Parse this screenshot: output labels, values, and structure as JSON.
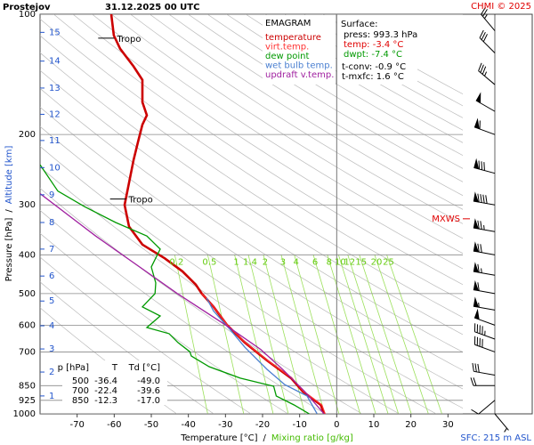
{
  "chart_data": {
    "type": "emagram",
    "station": "Prostejov",
    "title": "31.12.2025 00 UTC",
    "credit": "CHMI © 2025",
    "legend_title": "EMAGRAM",
    "xlabel": "Temperature [°C]",
    "label_separator": "/",
    "x2label": "Mixing ratio [g/kg]",
    "ylabel": "Pressure [hPa]",
    "y2label": "Altitude [km]",
    "xlim": [
      -80,
      34
    ],
    "xticks": [
      -70,
      -60,
      -50,
      -40,
      -30,
      -20,
      -10,
      0,
      10,
      20,
      30
    ],
    "zero_line": true,
    "ylim": [
      1000,
      100
    ],
    "log_y": true,
    "yticks": [
      100,
      200,
      300,
      400,
      500,
      600,
      700,
      850,
      925,
      1000
    ],
    "altitude_ticks": [
      {
        "value": 902,
        "label": "1"
      },
      {
        "value": 786,
        "label": "2"
      },
      {
        "value": 688,
        "label": "3"
      },
      {
        "value": 602,
        "label": "4"
      },
      {
        "value": 522,
        "label": "5"
      },
      {
        "value": 452,
        "label": "6"
      },
      {
        "value": 387,
        "label": "7"
      },
      {
        "value": 332,
        "label": "8"
      },
      {
        "value": 283,
        "label": "9"
      },
      {
        "value": 242,
        "label": "10"
      },
      {
        "value": 207,
        "label": "11"
      },
      {
        "value": 178,
        "label": "12"
      },
      {
        "value": 153,
        "label": "13"
      },
      {
        "value": 131,
        "label": "14"
      },
      {
        "value": 111,
        "label": "15"
      }
    ],
    "mixing_ratio_top": 400,
    "mixing_ratios": [
      0.2,
      0.5,
      1,
      1.4,
      2,
      3,
      4,
      6,
      8,
      10,
      12,
      15,
      20,
      25
    ],
    "series": [
      {
        "name": "temperature",
        "color": "#cc0000",
        "pressure": [
          1000,
          950,
          880,
          814,
          735,
          663,
          599,
          540,
          500,
          475,
          440,
          408,
          377,
          340,
          300,
          264,
          232,
          209,
          189,
          179,
          166,
          146,
          135,
          122,
          113,
          100
        ],
        "values": [
          -3.4,
          -4.3,
          -9.1,
          -12.3,
          -18.8,
          -24.8,
          -29.6,
          -33.2,
          -36.4,
          -38,
          -41.6,
          -46.4,
          -52.4,
          -56,
          -57.2,
          -56,
          -54.8,
          -53.6,
          -52.4,
          -51.2,
          -52.4,
          -52.4,
          -54.8,
          -58.4,
          -60.1,
          -60.8
        ]
      },
      {
        "name": "virt.temp.",
        "color": "#ff3030",
        "pressure": [
          1000,
          950,
          880,
          814,
          735,
          663,
          599,
          540,
          500
        ],
        "values": [
          -3.1,
          -4.0,
          -8.9,
          -12.1,
          -18.7,
          -24.7,
          -29.5,
          -33.2,
          -36.4
        ]
      },
      {
        "name": "dew point",
        "color": "#009900",
        "pressure": [
          1000,
          950,
          902,
          853,
          814,
          762,
          717,
          699,
          663,
          630,
          608,
          569,
          540,
          500,
          470,
          429,
          387,
          359,
          332,
          303,
          277,
          238
        ],
        "values": [
          -7.4,
          -11.5,
          -16.3,
          -17,
          -26,
          -34.4,
          -39.2,
          -39.6,
          -42.8,
          -45.2,
          -51.2,
          -47.6,
          -52.4,
          -49,
          -48.8,
          -50,
          -47.6,
          -51.2,
          -59.6,
          -68,
          -75.2,
          -80
        ]
      },
      {
        "name": "wet bulb temp.",
        "color": "#4a7fd0",
        "pressure": [
          1000,
          902,
          845,
          774,
          681,
          614,
          553,
          513
        ],
        "values": [
          -5.3,
          -8,
          -14,
          -18.8,
          -24.8,
          -28.8,
          -33.2,
          -35.1
        ]
      },
      {
        "name": "updraft v.temp.",
        "color": "#a020a0",
        "pressure": [
          1000,
          880,
          775,
          690,
          599,
          500,
          430,
          359,
          281
        ],
        "values": [
          -3.4,
          -8.6,
          -14.5,
          -20.5,
          -30,
          -43,
          -53,
          -65,
          -80
        ]
      }
    ],
    "tropopause": [
      {
        "label": "Tropo",
        "pressure": 114.8,
        "temperature": -60
      },
      {
        "label": "Tropo",
        "pressure": 290,
        "temperature": -56.8
      }
    ],
    "mxws": {
      "label": "MXWS",
      "pressure": 325
    },
    "surface": {
      "title": "Surface:",
      "lines": [
        {
          "text": "press: 993.3 hPa",
          "color": "#000000"
        },
        {
          "text": "temp: -3.4 °C",
          "color": "#e00000"
        },
        {
          "text": "dwpt: -7.4 °C",
          "color": "#009900"
        },
        {
          "text": "t-conv: -0.9 °C",
          "color": "#000000"
        },
        {
          "text": "t-mxfc: 1.6 °C",
          "color": "#000000"
        }
      ]
    },
    "table": {
      "header": [
        "p [hPa]",
        "T",
        "Td [°C]"
      ],
      "rows": [
        [
          500,
          -36.4,
          "-49.0"
        ],
        [
          700,
          -22.4,
          -39.6
        ],
        [
          850,
          -12.3,
          "-17.0"
        ]
      ]
    },
    "sfc_note": "SFC: 215 m ASL",
    "wind": {
      "pressure": [
        1000,
        925,
        850,
        800,
        700,
        650,
        600,
        550,
        500,
        450,
        400,
        350,
        300,
        250,
        200,
        175,
        150,
        125,
        110
      ],
      "direction": [
        140,
        230,
        270,
        280,
        290,
        290,
        290,
        280,
        280,
        280,
        280,
        280,
        280,
        285,
        290,
        300,
        310,
        315,
        320
      ],
      "speed_kt": [
        5,
        10,
        20,
        30,
        40,
        45,
        50,
        55,
        60,
        65,
        70,
        75,
        90,
        80,
        60,
        50,
        35,
        30,
        25
      ]
    }
  }
}
